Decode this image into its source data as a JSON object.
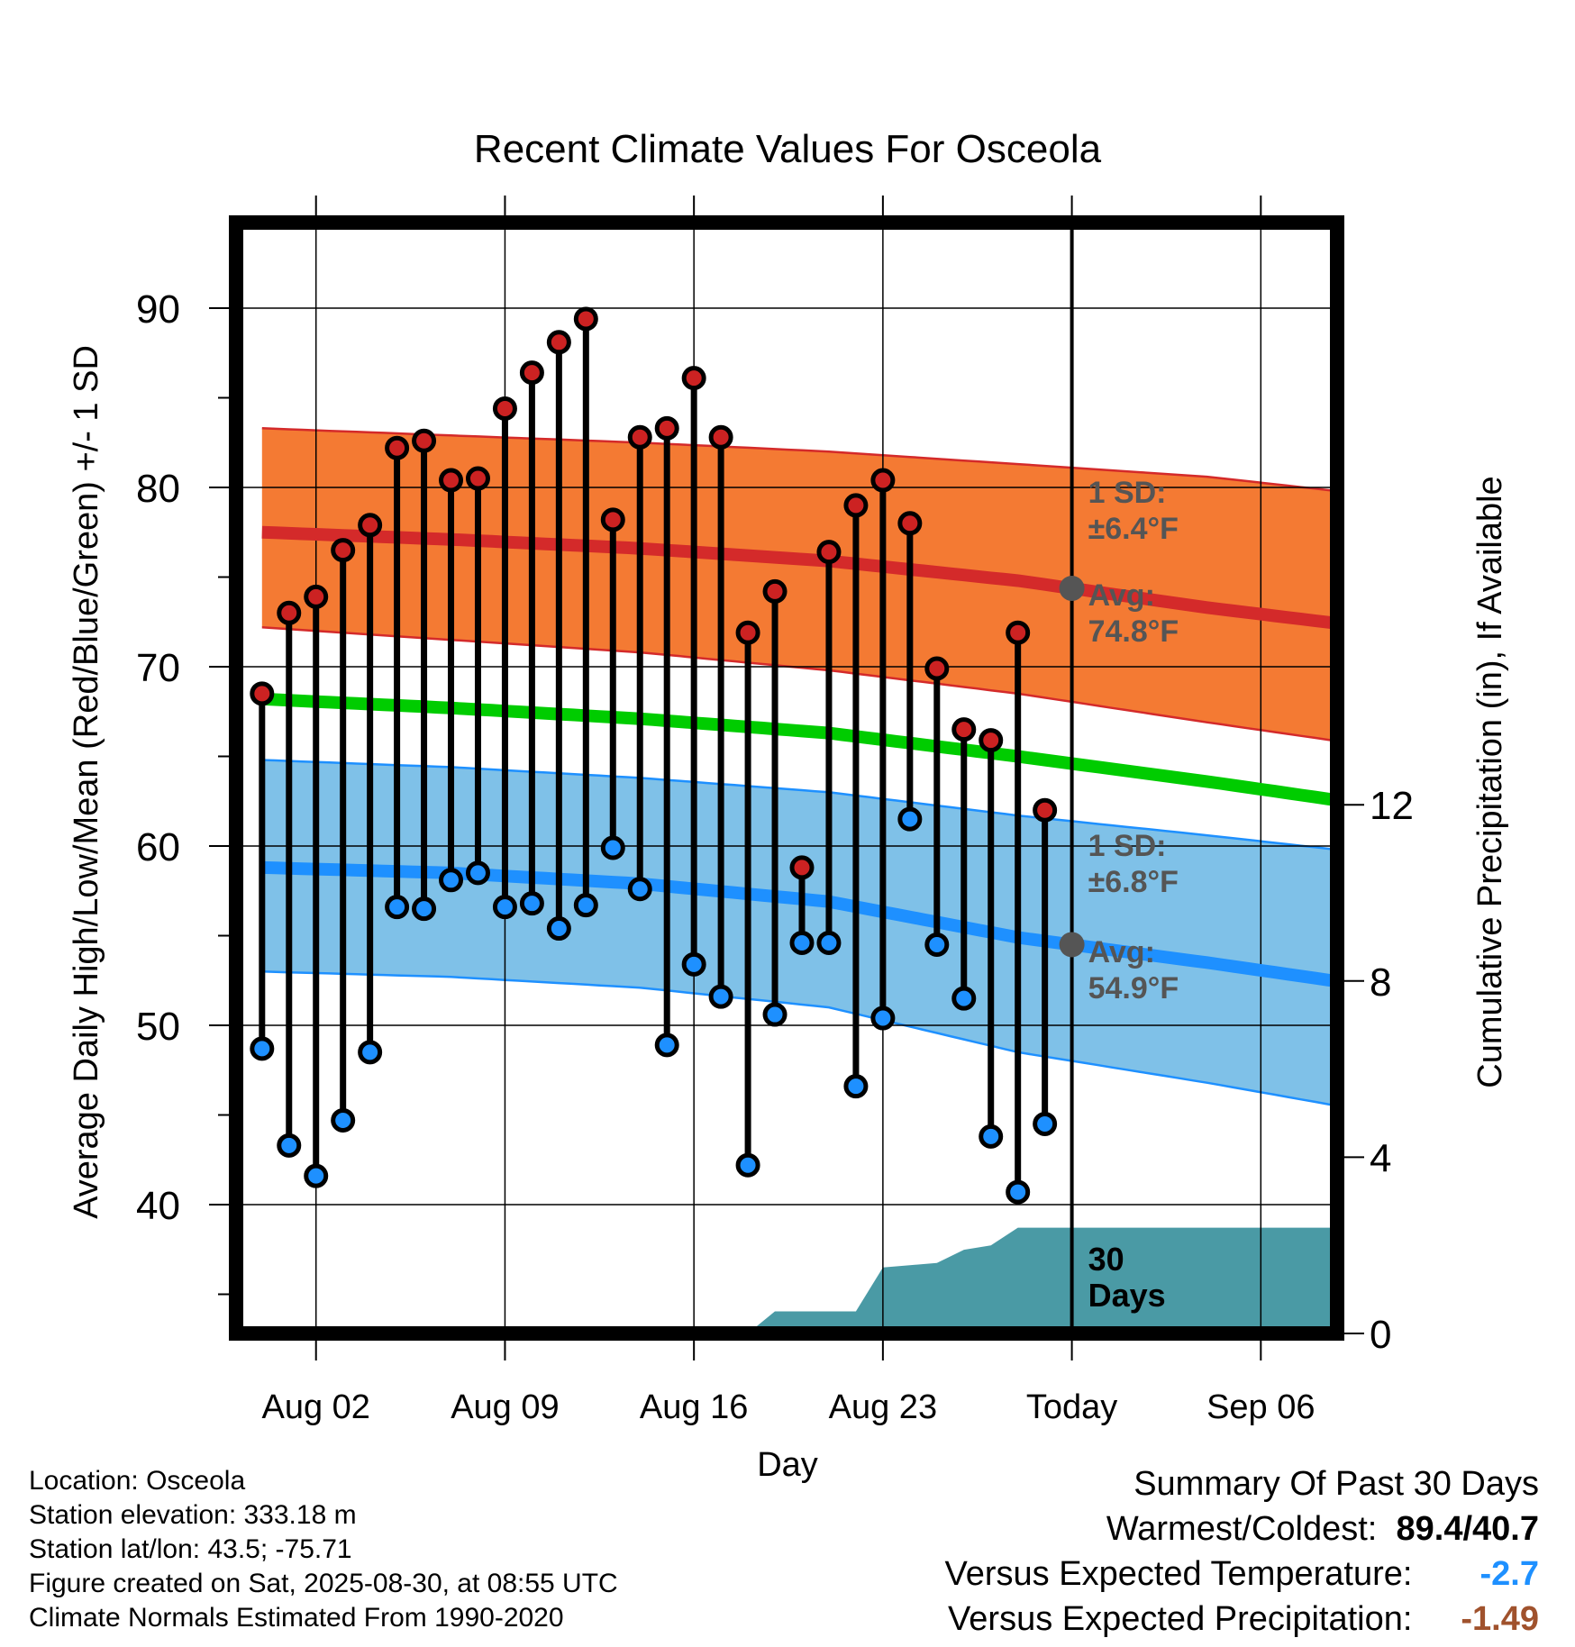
{
  "chart_data": {
    "type": "line",
    "title": "Recent Climate Values For Osceola",
    "xlabel": "Day",
    "ylabel": "Average Daily High/Low/Mean (Red/Blue/Green) +/- 1 SD",
    "y2label": "Cumulative Precipitation (in), If Available",
    "x_ticks": [
      "Aug 02",
      "Aug 09",
      "Aug 16",
      "Aug 23",
      "Today",
      "Sep 06"
    ],
    "y_ticks": [
      40,
      50,
      60,
      70,
      80,
      90
    ],
    "y2_ticks": [
      0,
      4,
      8,
      12
    ],
    "ylim": [
      33,
      95
    ],
    "y2lim": [
      0,
      24
    ],
    "x_days": [
      1,
      2,
      3,
      4,
      5,
      6,
      7,
      8,
      9,
      10,
      11,
      12,
      13,
      14,
      15,
      16,
      17,
      18,
      19,
      20,
      21,
      22,
      23,
      24,
      25,
      26,
      27,
      28,
      29,
      30
    ],
    "x_dates": [
      "Jul 31",
      "Aug 01",
      "Aug 02",
      "Aug 03",
      "Aug 04",
      "Aug 05",
      "Aug 06",
      "Aug 07",
      "Aug 08",
      "Aug 09",
      "Aug 10",
      "Aug 11",
      "Aug 12",
      "Aug 13",
      "Aug 14",
      "Aug 15",
      "Aug 16",
      "Aug 17",
      "Aug 18",
      "Aug 19",
      "Aug 20",
      "Aug 21",
      "Aug 22",
      "Aug 23",
      "Aug 24",
      "Aug 25",
      "Aug 26",
      "Aug 27",
      "Aug 28",
      "Aug 29"
    ],
    "series": [
      {
        "name": "High",
        "color": "#cc2222",
        "values": [
          68.5,
          73.0,
          73.9,
          76.5,
          77.9,
          82.2,
          82.6,
          80.4,
          80.5,
          84.4,
          86.4,
          88.1,
          89.4,
          78.2,
          82.8,
          83.3,
          86.1,
          82.8,
          71.9,
          74.2,
          58.8,
          76.4,
          79.0,
          80.4,
          78.0,
          69.9,
          66.5,
          65.9,
          71.9,
          62.0
        ]
      },
      {
        "name": "Low",
        "color": "#1e90ff",
        "values": [
          48.7,
          43.3,
          41.6,
          44.7,
          48.5,
          56.6,
          56.5,
          58.1,
          58.5,
          56.6,
          56.8,
          55.4,
          56.7,
          59.9,
          57.6,
          48.9,
          53.4,
          51.6,
          42.2,
          50.6,
          54.6,
          54.6,
          46.6,
          50.4,
          61.5,
          54.5,
          51.5,
          43.8,
          40.7,
          44.5
        ]
      }
    ],
    "normals": {
      "days": [
        1,
        8,
        15,
        22,
        29,
        36,
        42
      ],
      "high_avg": [
        77.5,
        77.1,
        76.6,
        75.9,
        74.8,
        73.3,
        72.2
      ],
      "high_upper": [
        83.3,
        82.9,
        82.5,
        82.0,
        81.3,
        80.6,
        79.6
      ],
      "high_lower": [
        72.2,
        71.5,
        70.8,
        69.8,
        68.5,
        66.9,
        65.6
      ],
      "mean_avg": [
        68.2,
        67.7,
        67.1,
        66.3,
        65.0,
        63.6,
        62.3
      ],
      "low_avg": [
        58.8,
        58.5,
        57.9,
        56.9,
        54.9,
        53.5,
        52.2
      ],
      "low_upper": [
        64.8,
        64.4,
        63.8,
        63.0,
        61.7,
        60.6,
        59.6
      ],
      "low_lower": [
        53.0,
        52.7,
        52.1,
        51.0,
        48.5,
        46.8,
        45.2
      ]
    },
    "precip_days": [
      1,
      19,
      20,
      21,
      22,
      23,
      24,
      25,
      26,
      27,
      28,
      29,
      30,
      31,
      36,
      42
    ],
    "precip_cumulative": [
      0,
      0,
      0.5,
      0.5,
      0.5,
      0.5,
      1.5,
      1.55,
      1.6,
      1.9,
      2.0,
      2.4,
      2.4,
      2.4,
      2.4,
      2.4
    ],
    "today_day": 31,
    "annotations": {
      "high_sd": [
        "1 SD:",
        "±6.4°F"
      ],
      "high_avg": [
        "Avg:",
        "74.8°F"
      ],
      "low_sd": [
        "1 SD:",
        "±6.8°F"
      ],
      "low_avg": [
        "Avg:",
        "54.9°F"
      ],
      "precip_days": [
        "30",
        "Days"
      ]
    },
    "colors": {
      "high_band": "#f47a33",
      "high_line": "#d42a2a",
      "mean_line": "#00cc00",
      "low_band": "#7fc1e8",
      "low_line": "#1e90ff",
      "precip": "#4a9aa5",
      "annotation": "#555555"
    }
  },
  "footer": {
    "location": "Location: Osceola",
    "elevation": "Station elevation: 333.18 m",
    "latlon": "Station lat/lon: 43.5; -75.71",
    "created": "Figure created on Sat, 2025-08-30, at 08:55 UTC",
    "normals": "Climate Normals Estimated From 1990-2020"
  },
  "summary": {
    "title": "Summary Of Past 30 Days",
    "warm_cold_label": "Warmest/Coldest:",
    "warm_value": "89.4",
    "cold_value": "40.7",
    "temp_label": "Versus Expected Temperature:",
    "temp_value": "-2.7",
    "temp_color": "#1e90ff",
    "precip_label": "Versus Expected Precipitation:",
    "precip_value": "-1.49",
    "precip_color": "#a0522d"
  }
}
